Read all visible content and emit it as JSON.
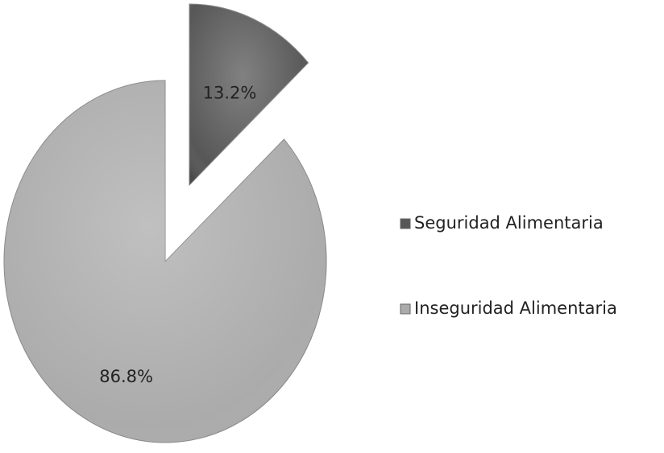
{
  "chart_data": {
    "type": "pie",
    "categories": [
      "Seguridad Alimentaria",
      "Inseguridad Alimentaria"
    ],
    "values": [
      13.2,
      86.8
    ],
    "value_labels": [
      "13.2%",
      "86.8%"
    ],
    "colors": [
      "#575757",
      "#ababab"
    ],
    "legend": "right"
  }
}
